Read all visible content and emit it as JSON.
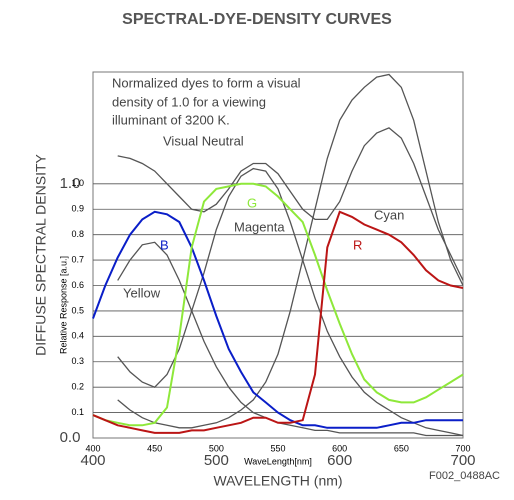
{
  "chart_data": [
    {
      "type": "line",
      "title": "SPECTRAL-DYE-DENSITY CURVES",
      "annotation": [
        "Normalized dyes to form a visual",
        "density of 1.0 for a viewing",
        "illuminant of 3200 K."
      ],
      "y_label": "DIFFUSE SPECTRAL DENSITY",
      "x_label": "WAVELENGTH (nm)",
      "footnote": "F002_0488AC",
      "xlim": [
        400,
        700
      ],
      "xticks": [
        400,
        500,
        600,
        700
      ],
      "ylim": [
        0,
        1.44
      ],
      "yticks": [
        {
          "value": 0,
          "label": "0.0"
        },
        {
          "value": 1,
          "label": "1.0"
        }
      ],
      "x": [
        420,
        430,
        440,
        450,
        460,
        470,
        480,
        490,
        500,
        510,
        520,
        530,
        540,
        550,
        560,
        570,
        580,
        590,
        600,
        610,
        620,
        630,
        640,
        650,
        660,
        670,
        680,
        690,
        700
      ],
      "series": [
        {
          "name": "Visual Neutral",
          "color": "#555555",
          "values": [
            1.11,
            1.1,
            1.08,
            1.05,
            1.0,
            0.95,
            0.9,
            0.89,
            0.92,
            0.98,
            1.05,
            1.08,
            1.08,
            1.04,
            0.97,
            0.9,
            0.86,
            0.86,
            0.93,
            1.05,
            1.15,
            1.2,
            1.22,
            1.18,
            1.08,
            0.95,
            0.82,
            0.72,
            0.62
          ]
        },
        {
          "name": "Cyan",
          "color": "#555555",
          "values": [
            0.15,
            0.11,
            0.08,
            0.06,
            0.05,
            0.04,
            0.04,
            0.05,
            0.06,
            0.08,
            0.11,
            0.15,
            0.22,
            0.33,
            0.5,
            0.7,
            0.9,
            1.1,
            1.25,
            1.33,
            1.38,
            1.42,
            1.43,
            1.38,
            1.25,
            1.05,
            0.85,
            0.7,
            0.6
          ]
        },
        {
          "name": "Magenta",
          "color": "#555555",
          "values": [
            0.32,
            0.26,
            0.22,
            0.2,
            0.25,
            0.35,
            0.5,
            0.65,
            0.82,
            0.95,
            1.03,
            1.06,
            1.05,
            0.98,
            0.85,
            0.7,
            0.55,
            0.42,
            0.32,
            0.24,
            0.18,
            0.14,
            0.11,
            0.08,
            0.06,
            0.04,
            0.03,
            0.02,
            0.01
          ]
        },
        {
          "name": "Yellow",
          "color": "#555555",
          "values": [
            0.62,
            0.7,
            0.76,
            0.77,
            0.72,
            0.62,
            0.5,
            0.38,
            0.28,
            0.2,
            0.14,
            0.1,
            0.08,
            0.06,
            0.05,
            0.04,
            0.03,
            0.03,
            0.02,
            0.02,
            0.02,
            0.02,
            0.02,
            0.02,
            0.02,
            0.01,
            0.01,
            0.01,
            0.01
          ]
        }
      ]
    },
    {
      "type": "line",
      "y_label": "Relative Response [a.u.]",
      "x_label": "WaveLength[nm]",
      "grid": true,
      "xlim": [
        400,
        700
      ],
      "xticks": [
        400,
        450,
        500,
        550,
        600,
        650,
        700
      ],
      "ylim": [
        0,
        1.44
      ],
      "yticks": [
        0.1,
        0.2,
        0.3,
        0.4,
        0.5,
        0.6,
        0.7,
        0.8,
        0.9,
        {
          "value": 1,
          "label": "1.0"
        }
      ],
      "x": [
        400,
        410,
        420,
        430,
        440,
        450,
        460,
        470,
        480,
        490,
        500,
        510,
        520,
        530,
        540,
        550,
        560,
        570,
        580,
        590,
        600,
        610,
        620,
        630,
        640,
        650,
        660,
        670,
        680,
        690,
        700
      ],
      "series": [
        {
          "name": "B",
          "color": "#0a1ec8",
          "values": [
            0.47,
            0.6,
            0.71,
            0.8,
            0.86,
            0.89,
            0.88,
            0.85,
            0.75,
            0.62,
            0.48,
            0.35,
            0.26,
            0.18,
            0.14,
            0.1,
            0.07,
            0.05,
            0.05,
            0.04,
            0.04,
            0.04,
            0.04,
            0.04,
            0.05,
            0.06,
            0.06,
            0.07,
            0.07,
            0.07,
            0.07
          ]
        },
        {
          "name": "G",
          "color": "#8ee83a",
          "values": [
            0.09,
            0.07,
            0.06,
            0.05,
            0.05,
            0.06,
            0.12,
            0.4,
            0.75,
            0.93,
            0.98,
            0.99,
            1.0,
            1.0,
            0.99,
            0.95,
            0.9,
            0.85,
            0.72,
            0.58,
            0.45,
            0.33,
            0.23,
            0.18,
            0.15,
            0.14,
            0.14,
            0.16,
            0.19,
            0.22,
            0.25
          ]
        },
        {
          "name": "R",
          "color": "#bb1515",
          "values": [
            0.09,
            0.07,
            0.05,
            0.04,
            0.03,
            0.02,
            0.02,
            0.02,
            0.03,
            0.03,
            0.04,
            0.05,
            0.06,
            0.08,
            0.08,
            0.06,
            0.06,
            0.07,
            0.25,
            0.75,
            0.89,
            0.87,
            0.84,
            0.82,
            0.8,
            0.77,
            0.72,
            0.66,
            0.62,
            0.6,
            0.59
          ]
        }
      ]
    }
  ]
}
